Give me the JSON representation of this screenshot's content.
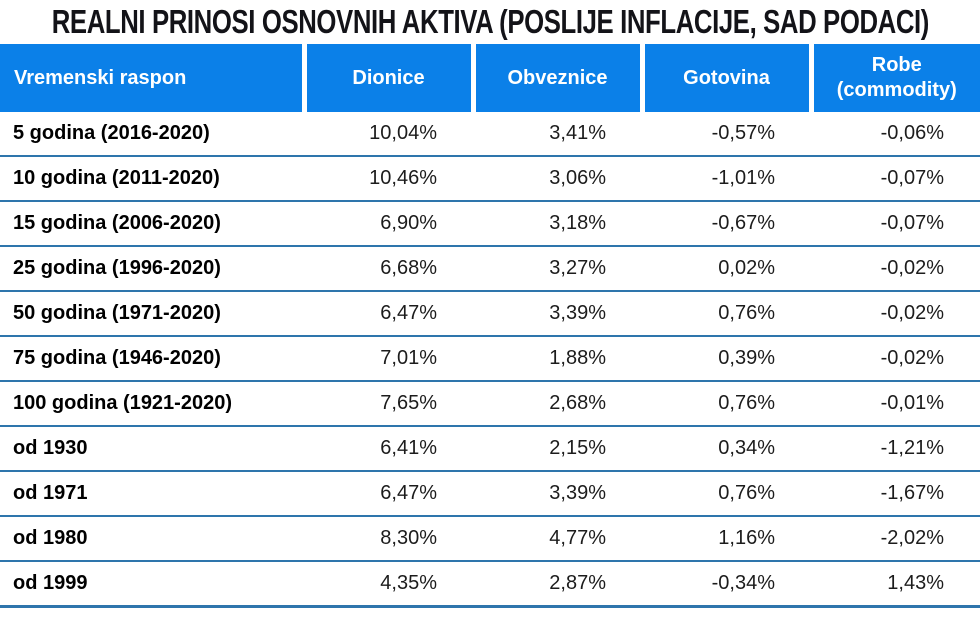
{
  "title": "REALNI PRINOSI OSNOVNIH AKTIVA (POSLIJE INFLACIJE, SAD PODACI)",
  "colors": {
    "header_bg": "#0b80e8",
    "header_text": "#ffffff",
    "row_separator": "#2e75ac",
    "title_color": "#131318"
  },
  "table": {
    "columns": [
      "Vremenski raspon",
      "Dionice",
      "Obveznice",
      "Gotovina",
      "Robe (commodity)"
    ],
    "rows": [
      {
        "label": "5 godina (2016-2020)",
        "values": [
          "10,04%",
          "3,41%",
          "-0,57%",
          "-0,06%"
        ]
      },
      {
        "label": "10 godina (2011-2020)",
        "values": [
          "10,46%",
          "3,06%",
          "-1,01%",
          "-0,07%"
        ]
      },
      {
        "label": "15 godina (2006-2020)",
        "values": [
          "6,90%",
          "3,18%",
          "-0,67%",
          "-0,07%"
        ]
      },
      {
        "label": "25 godina (1996-2020)",
        "values": [
          "6,68%",
          "3,27%",
          "0,02%",
          "-0,02%"
        ]
      },
      {
        "label": "50 godina (1971-2020)",
        "values": [
          "6,47%",
          "3,39%",
          "0,76%",
          "-0,02%"
        ]
      },
      {
        "label": "75 godina (1946-2020)",
        "values": [
          "7,01%",
          "1,88%",
          "0,39%",
          "-0,02%"
        ]
      },
      {
        "label": "100 godina (1921-2020)",
        "values": [
          "7,65%",
          "2,68%",
          "0,76%",
          "-0,01%"
        ]
      },
      {
        "label": "od 1930",
        "values": [
          "6,41%",
          "2,15%",
          "0,34%",
          "-1,21%"
        ]
      },
      {
        "label": "od 1971",
        "values": [
          "6,47%",
          "3,39%",
          "0,76%",
          "-1,67%"
        ]
      },
      {
        "label": "od 1980",
        "values": [
          "8,30%",
          "4,77%",
          "1,16%",
          "-2,02%"
        ]
      },
      {
        "label": "od 1999",
        "values": [
          "4,35%",
          "2,87%",
          "-0,34%",
          "1,43%"
        ]
      }
    ]
  },
  "chart_data": {
    "type": "table",
    "title": "REALNI PRINOSI OSNOVNIH AKTIVA (POSLIJE INFLACIJE, SAD PODACI)",
    "columns": [
      "Vremenski raspon",
      "Dionice",
      "Obveznice",
      "Gotovina",
      "Robe (commodity)"
    ],
    "unit": "percent (real annual return, after inflation, US data)",
    "rows": [
      {
        "period": "5 godina (2016-2020)",
        "dionice": 10.04,
        "obveznice": 3.41,
        "gotovina": -0.57,
        "robe": -0.06
      },
      {
        "period": "10 godina (2011-2020)",
        "dionice": 10.46,
        "obveznice": 3.06,
        "gotovina": -1.01,
        "robe": -0.07
      },
      {
        "period": "15 godina (2006-2020)",
        "dionice": 6.9,
        "obveznice": 3.18,
        "gotovina": -0.67,
        "robe": -0.07
      },
      {
        "period": "25 godina (1996-2020)",
        "dionice": 6.68,
        "obveznice": 3.27,
        "gotovina": 0.02,
        "robe": -0.02
      },
      {
        "period": "50 godina (1971-2020)",
        "dionice": 6.47,
        "obveznice": 3.39,
        "gotovina": 0.76,
        "robe": -0.02
      },
      {
        "period": "75 godina (1946-2020)",
        "dionice": 7.01,
        "obveznice": 1.88,
        "gotovina": 0.39,
        "robe": -0.02
      },
      {
        "period": "100 godina (1921-2020)",
        "dionice": 7.65,
        "obveznice": 2.68,
        "gotovina": 0.76,
        "robe": -0.01
      },
      {
        "period": "od 1930",
        "dionice": 6.41,
        "obveznice": 2.15,
        "gotovina": 0.34,
        "robe": -1.21
      },
      {
        "period": "od 1971",
        "dionice": 6.47,
        "obveznice": 3.39,
        "gotovina": 0.76,
        "robe": -1.67
      },
      {
        "period": "od 1980",
        "dionice": 8.3,
        "obveznice": 4.77,
        "gotovina": 1.16,
        "robe": -2.02
      },
      {
        "period": "od 1999",
        "dionice": 4.35,
        "obveznice": 2.87,
        "gotovina": -0.34,
        "robe": 1.43
      }
    ]
  }
}
